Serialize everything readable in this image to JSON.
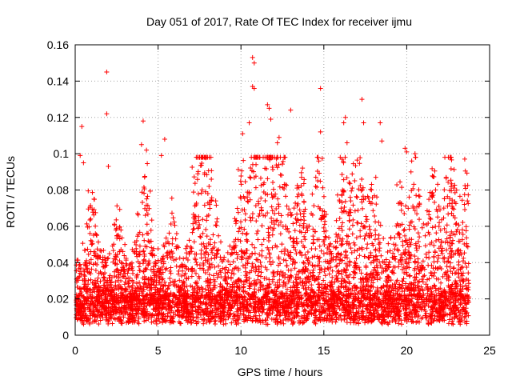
{
  "chart_data": {
    "type": "scatter",
    "title": "Day 051 of 2017, Rate Of TEC Index for receiver ijmu",
    "xlabel": "GPS time / hours",
    "ylabel": "ROTI / TECUs",
    "xlim": [
      0,
      25
    ],
    "ylim": [
      0,
      0.16
    ],
    "xticks": [
      0,
      5,
      10,
      15,
      20,
      25
    ],
    "xtick_labels": [
      "0",
      "5",
      "10",
      "15",
      "20",
      "25"
    ],
    "yticks": [
      0,
      0.02,
      0.04,
      0.06,
      0.08,
      0.1,
      0.12,
      0.14,
      0.16
    ],
    "ytick_labels": [
      "0",
      "0.02",
      "0.04",
      "0.06",
      "0.08",
      "0.1",
      "0.12",
      "0.14",
      "0.16"
    ],
    "grid": true,
    "marker": "+",
    "color": "#ff0000",
    "series": [
      {
        "name": "ROTI",
        "description_of_distribution": "dense band of points from 0 to 23.8 h, mostly 0.005-0.04 TECU, with spikes up to ~0.15",
        "outliers": [
          {
            "x": 0.4,
            "y": 0.115
          },
          {
            "x": 0.3,
            "y": 0.099
          },
          {
            "x": 0.5,
            "y": 0.095
          },
          {
            "x": 1.9,
            "y": 0.145
          },
          {
            "x": 1.9,
            "y": 0.122
          },
          {
            "x": 2.0,
            "y": 0.093
          },
          {
            "x": 4.1,
            "y": 0.118
          },
          {
            "x": 4.0,
            "y": 0.105
          },
          {
            "x": 4.3,
            "y": 0.102
          },
          {
            "x": 5.4,
            "y": 0.108
          },
          {
            "x": 5.2,
            "y": 0.099
          },
          {
            "x": 10.1,
            "y": 0.111
          },
          {
            "x": 10.5,
            "y": 0.117
          },
          {
            "x": 10.7,
            "y": 0.153
          },
          {
            "x": 10.8,
            "y": 0.15
          },
          {
            "x": 10.7,
            "y": 0.137
          },
          {
            "x": 10.8,
            "y": 0.136
          },
          {
            "x": 11.6,
            "y": 0.127
          },
          {
            "x": 11.7,
            "y": 0.125
          },
          {
            "x": 11.8,
            "y": 0.119
          },
          {
            "x": 12.3,
            "y": 0.109
          },
          {
            "x": 12.2,
            "y": 0.106
          },
          {
            "x": 13.0,
            "y": 0.124
          },
          {
            "x": 14.8,
            "y": 0.136
          },
          {
            "x": 14.8,
            "y": 0.112
          },
          {
            "x": 16.3,
            "y": 0.12
          },
          {
            "x": 16.2,
            "y": 0.117
          },
          {
            "x": 16.4,
            "y": 0.106
          },
          {
            "x": 17.3,
            "y": 0.13
          },
          {
            "x": 17.4,
            "y": 0.117
          },
          {
            "x": 18.4,
            "y": 0.117
          },
          {
            "x": 18.5,
            "y": 0.107
          },
          {
            "x": 19.9,
            "y": 0.103
          },
          {
            "x": 20.0,
            "y": 0.101
          },
          {
            "x": 20.5,
            "y": 0.1
          },
          {
            "x": 20.3,
            "y": 0.096
          },
          {
            "x": 22.3,
            "y": 0.098
          },
          {
            "x": 23.5,
            "y": 0.097
          }
        ]
      }
    ]
  }
}
